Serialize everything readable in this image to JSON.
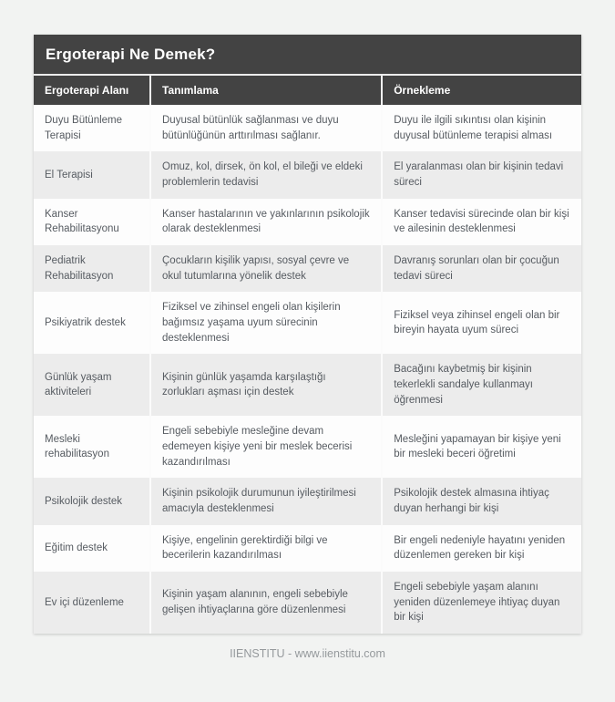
{
  "page": {
    "title": "Ergoterapi Ne Demek?",
    "footer": "IIENSTITU - www.iienstitu.com"
  },
  "colors": {
    "header_bg": "#434343",
    "header_text": "#ffffff",
    "row_white": "#fdfdfd",
    "row_gray": "#ececec",
    "body_text": "#565b61",
    "page_bg": "#f2f3f2",
    "footer_text": "#95999c"
  },
  "table": {
    "columns": [
      "Ergoterapi Alanı",
      "Tanımlama",
      "Örnekleme"
    ],
    "rows": [
      {
        "area": "Duyu Bütünleme Terapisi",
        "definition": "Duyusal bütünlük sağlanması ve duyu bütünlüğünün arttırılması sağlanır.",
        "example": "Duyu ile ilgili sıkıntısı olan kişinin duyusal bütünleme terapisi alması"
      },
      {
        "area": "El Terapisi",
        "definition": "Omuz, kol, dirsek, ön kol, el bileği ve eldeki problemlerin tedavisi",
        "example": "El yaralanması olan bir kişinin tedavi süreci"
      },
      {
        "area": "Kanser Rehabilitasyonu",
        "definition": "Kanser hastalarının ve yakınlarının psikolojik olarak desteklenmesi",
        "example": "Kanser tedavisi sürecinde olan bir kişi ve ailesinin desteklenmesi"
      },
      {
        "area": "Pediatrik Rehabilitasyon",
        "definition": "Çocukların kişilik yapısı, sosyal çevre ve okul tutumlarına yönelik destek",
        "example": "Davranış sorunları olan bir çocuğun tedavi süreci"
      },
      {
        "area": "Psikiyatrik destek",
        "definition": "Fiziksel ve zihinsel engeli olan kişilerin bağımsız yaşama uyum sürecinin desteklenmesi",
        "example": "Fiziksel veya zihinsel engeli olan bir bireyin hayata uyum süreci"
      },
      {
        "area": "Günlük yaşam aktiviteleri",
        "definition": "Kişinin günlük yaşamda karşılaştığı zorlukları aşması için destek",
        "example": "Bacağını kaybetmiş bir kişinin tekerlekli sandalye kullanmayı öğrenmesi"
      },
      {
        "area": "Mesleki rehabilitasyon",
        "definition": "Engeli sebebiyle mesleğine devam edemeyen kişiye yeni bir meslek becerisi kazandırılması",
        "example": "Mesleğini yapamayan bir kişiye yeni bir mesleki beceri öğretimi"
      },
      {
        "area": "Psikolojik destek",
        "definition": "Kişinin psikolojik durumunun iyileştirilmesi amacıyla desteklenmesi",
        "example": "Psikolojik destek almasına ihtiyaç duyan herhangi bir kişi"
      },
      {
        "area": "Eğitim destek",
        "definition": "Kişiye, engelinin gerektirdiği bilgi ve becerilerin kazandırılması",
        "example": "Bir engeli nedeniyle hayatını yeniden düzenlemen gereken bir kişi"
      },
      {
        "area": "Ev içi düzenleme",
        "definition": "Kişinin yaşam alanının, engeli sebebiyle gelişen ihtiyaçlarına göre düzenlenmesi",
        "example": "Engeli sebebiyle yaşam alanını yeniden düzenlemeye ihtiyaç duyan bir kişi"
      }
    ]
  }
}
